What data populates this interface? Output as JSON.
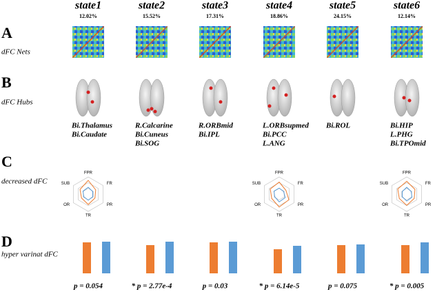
{
  "rows": [
    {
      "letter": "A",
      "label": "dFC Nets"
    },
    {
      "letter": "B",
      "label": "dFC Hubs"
    },
    {
      "letter": "C",
      "label": "decreased dFC"
    },
    {
      "letter": "D",
      "label": "hyper varinat dFC"
    }
  ],
  "radar_axes": [
    "FPR",
    "FR",
    "PR",
    "TR",
    "OR",
    "SUB"
  ],
  "bar_colors": [
    "#ed7d31",
    "#5b9bd5"
  ],
  "states": [
    {
      "name": "state1",
      "percent": "12.02%",
      "hubs": [
        "Bi.Thalamus",
        "Bi.Caudate"
      ],
      "radar": [
        [
          0.8,
          0.5,
          0.45,
          0.6,
          0.45,
          0.55
        ],
        [
          0.4,
          0.3,
          0.3,
          0.35,
          0.3,
          0.35
        ]
      ],
      "bars": [
        45,
        46
      ],
      "p_value": "p = 0.054"
    },
    {
      "name": "state2",
      "percent": "15.52%",
      "hubs": [
        "R.Calcarine",
        "Bi.Cuneus",
        "Bi.SOG"
      ],
      "bars": [
        41,
        46
      ],
      "p_value": "* p = 2.77e-4"
    },
    {
      "name": "state3",
      "percent": "17.31%",
      "hubs": [
        "R.ORBmid",
        "Bi.IPL"
      ],
      "bars": [
        45,
        46
      ],
      "p_value": "p = 0.03"
    },
    {
      "name": "state4",
      "percent": "18.86%",
      "hubs": [
        "L.ORBsupmed",
        "Bi.PCC",
        "L.ANG"
      ],
      "radar": [
        [
          0.7,
          0.45,
          0.65,
          0.75,
          0.5,
          0.6
        ],
        [
          0.35,
          0.3,
          0.4,
          0.45,
          0.3,
          0.35
        ]
      ],
      "bars": [
        35,
        40
      ],
      "p_value": "* p = 6.14e-5"
    },
    {
      "name": "state5",
      "percent": "24.15%",
      "hubs": [
        "Bi.ROL"
      ],
      "bars": [
        41,
        42
      ],
      "p_value": "p = 0.075"
    },
    {
      "name": "state6",
      "percent": "12.14%",
      "hubs": [
        "Bi.HIP",
        "L.PHG",
        "Bi.TPOmid"
      ],
      "radar": [
        [
          0.75,
          0.55,
          0.5,
          0.65,
          0.5,
          0.6
        ],
        [
          0.4,
          0.3,
          0.35,
          0.4,
          0.3,
          0.3
        ]
      ],
      "bars": [
        41,
        45
      ],
      "p_value": "* p = 0.005"
    }
  ]
}
